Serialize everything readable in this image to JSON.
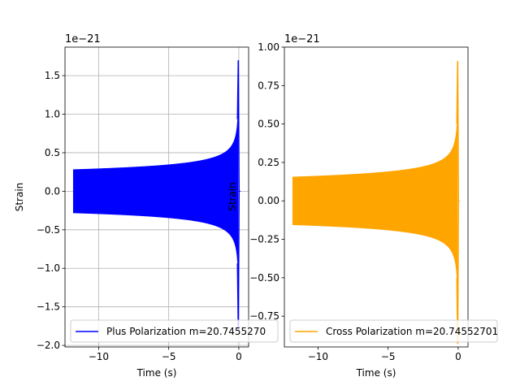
{
  "chart_data": [
    {
      "type": "line",
      "title": "",
      "xlabel": "Time (s)",
      "ylabel": "Strain",
      "offset_text": "1e−21",
      "xlim": [
        -12.4,
        0.7
      ],
      "ylim": [
        -2.02,
        1.87
      ],
      "xticks": [
        -10,
        -5,
        0
      ],
      "xtick_labels": [
        "−10",
        "−5",
        "0"
      ],
      "yticks": [
        -2.0,
        -1.5,
        -1.0,
        -0.5,
        0.0,
        0.5,
        1.0,
        1.5
      ],
      "ytick_labels": [
        "−2.0",
        "−1.5",
        "−1.0",
        "−0.5",
        "0.0",
        "0.5",
        "1.0",
        "1.5"
      ],
      "grid": true,
      "legend_position": "lower-left",
      "series": [
        {
          "name": "Plus Polarization m=20.7455270",
          "color": "#0000ff",
          "x_start": -11.8,
          "x_end": 0.0,
          "start_amplitude": 0.28,
          "peak_amplitude": 1.7,
          "min_value": -1.8
        }
      ]
    },
    {
      "type": "line",
      "title": "",
      "xlabel": "Time (s)",
      "ylabel": "Strain",
      "offset_text": "1e−21",
      "xlim": [
        -12.4,
        0.7
      ],
      "ylim": [
        -0.95,
        1.0
      ],
      "xticks": [
        -10,
        -5,
        0
      ],
      "xtick_labels": [
        "−10",
        "−5",
        "0"
      ],
      "yticks": [
        -0.75,
        -0.5,
        -0.25,
        0.0,
        0.25,
        0.5,
        0.75,
        1.0
      ],
      "ytick_labels": [
        "−0.75",
        "−0.50",
        "−0.25",
        "0.00",
        "0.25",
        "0.50",
        "0.75",
        "1.00"
      ],
      "grid": false,
      "legend_position": "lower-left",
      "series": [
        {
          "name": "Cross Polarization m=20.74552701",
          "color": "#ffa500",
          "x_start": -11.8,
          "x_end": 0.0,
          "start_amplitude": 0.155,
          "peak_amplitude": 0.91,
          "min_value": -0.93
        }
      ]
    }
  ]
}
